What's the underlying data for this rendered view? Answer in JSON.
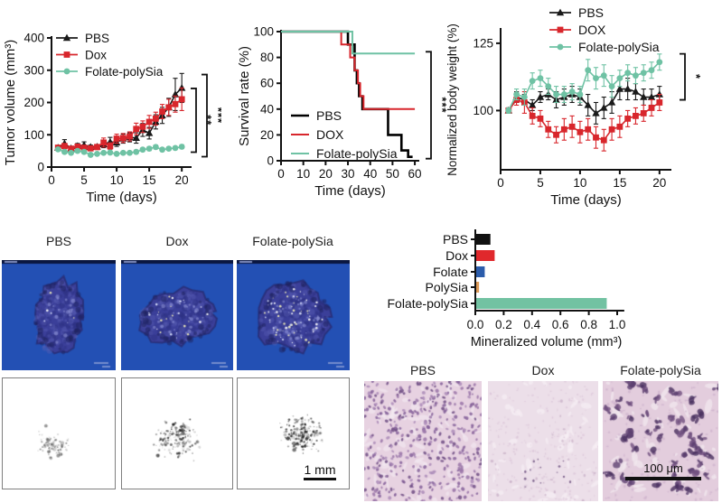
{
  "figure": {
    "background": "#ffffff"
  },
  "chart_data": [
    {
      "id": "tumor-volume",
      "type": "line",
      "xlabel": "Time (days)",
      "ylabel": "Tumor volume (mm³)",
      "xlim": [
        0,
        21.5
      ],
      "ylim": [
        0,
        400
      ],
      "xticks": [
        0,
        5,
        10,
        15,
        20
      ],
      "yticks": [
        0,
        100,
        200,
        300,
        400
      ],
      "x": [
        1,
        2,
        3,
        4,
        5,
        6,
        7,
        8,
        9,
        10,
        11,
        12,
        13,
        14,
        15,
        16,
        17,
        18,
        19,
        20
      ],
      "series": [
        {
          "name": "PBS",
          "color": "#1a1a1a",
          "marker": "triangle",
          "values": [
            60,
            73,
            58,
            65,
            68,
            62,
            63,
            70,
            78,
            76,
            88,
            92,
            90,
            115,
            105,
            140,
            160,
            185,
            225,
            245
          ],
          "errors": [
            5,
            12,
            6,
            8,
            10,
            6,
            6,
            10,
            14,
            12,
            14,
            14,
            16,
            20,
            18,
            22,
            25,
            28,
            50,
            45
          ]
        },
        {
          "name": "Dox",
          "color": "#d8262c",
          "marker": "square",
          "values": [
            60,
            65,
            57,
            63,
            60,
            58,
            62,
            76,
            65,
            88,
            90,
            95,
            118,
            125,
            140,
            150,
            172,
            185,
            195,
            210
          ],
          "errors": [
            5,
            8,
            6,
            8,
            7,
            6,
            8,
            14,
            10,
            14,
            14,
            14,
            18,
            18,
            20,
            20,
            22,
            25,
            25,
            35
          ]
        },
        {
          "name": "Folate-polySia",
          "color": "#6fc2a4",
          "marker": "circle",
          "values": [
            55,
            47,
            44,
            50,
            47,
            38,
            41,
            44,
            45,
            41,
            44,
            44,
            47,
            54,
            57,
            62,
            54,
            57,
            59,
            63
          ],
          "errors": [
            4,
            4,
            4,
            5,
            4,
            4,
            4,
            4,
            5,
            4,
            4,
            4,
            5,
            5,
            6,
            6,
            5,
            5,
            5,
            6
          ]
        }
      ],
      "significance": [
        {
          "label": "**",
          "a": 1,
          "b": 2
        },
        {
          "label": "***",
          "a": 0,
          "b": 2
        }
      ]
    },
    {
      "id": "survival",
      "type": "step",
      "xlabel": "Time (days)",
      "ylabel": "Survival rate (%)",
      "xlim": [
        0,
        62
      ],
      "ylim": [
        0,
        100
      ],
      "xticks": [
        0,
        10,
        20,
        30,
        40,
        50,
        60
      ],
      "yticks": [
        0,
        20,
        40,
        60,
        80,
        100
      ],
      "series": [
        {
          "name": "PBS",
          "color": "#000000",
          "width": 2.6,
          "steps": [
            [
              0,
              100
            ],
            [
              30,
              100
            ],
            [
              30,
              90
            ],
            [
              33,
              90
            ],
            [
              33,
              70
            ],
            [
              34,
              70
            ],
            [
              34,
              60
            ],
            [
              35,
              60
            ],
            [
              35,
              50
            ],
            [
              36.5,
              50
            ],
            [
              36.5,
              40
            ],
            [
              48,
              40
            ],
            [
              48,
              20
            ],
            [
              54,
              20
            ],
            [
              54,
              8
            ],
            [
              57,
              8
            ],
            [
              57,
              3
            ],
            [
              59,
              3
            ]
          ]
        },
        {
          "name": "DOX",
          "color": "#d8262c",
          "width": 2,
          "steps": [
            [
              0,
              100
            ],
            [
              27,
              100
            ],
            [
              27,
              90
            ],
            [
              31,
              90
            ],
            [
              31,
              80
            ],
            [
              33,
              80
            ],
            [
              33,
              70
            ],
            [
              34.5,
              70
            ],
            [
              34.5,
              60
            ],
            [
              35.5,
              60
            ],
            [
              35.5,
              50
            ],
            [
              37,
              50
            ],
            [
              37,
              40
            ],
            [
              60,
              40
            ]
          ]
        },
        {
          "name": "Folate-polySia",
          "color": "#6fc2a4",
          "width": 2,
          "steps": [
            [
              0,
              100
            ],
            [
              32,
              100
            ],
            [
              32,
              83
            ],
            [
              60,
              83
            ]
          ]
        }
      ],
      "significance": [
        {
          "label": "***",
          "a": 2,
          "b": 0
        }
      ]
    },
    {
      "id": "body-weight",
      "type": "line",
      "xlabel": "Time (days)",
      "ylabel": "Normalized body weight (%)",
      "xlim": [
        0,
        21.5
      ],
      "ylim": [
        78,
        130
      ],
      "xticks": [
        0,
        5,
        10,
        15,
        20
      ],
      "yticks": [
        100,
        125
      ],
      "x": [
        1,
        2,
        3,
        4,
        5,
        6,
        7,
        8,
        9,
        10,
        11,
        12,
        13,
        14,
        15,
        16,
        17,
        18,
        19,
        20
      ],
      "series": [
        {
          "name": "PBS",
          "color": "#1a1a1a",
          "marker": "triangle",
          "values": [
            100,
            105,
            104,
            102,
            105,
            106,
            104,
            105,
            106,
            105,
            102,
            99,
            101,
            103,
            108,
            108,
            107,
            105,
            105,
            106
          ],
          "errors": [
            1,
            2,
            2,
            2,
            2,
            2,
            3,
            3,
            3,
            3,
            4,
            4,
            4,
            4,
            4,
            4,
            3,
            3,
            3,
            3
          ]
        },
        {
          "name": "DOX",
          "color": "#d8262c",
          "marker": "square",
          "values": [
            100,
            104,
            103,
            98,
            97,
            93,
            91,
            93,
            94,
            92,
            93,
            90,
            89,
            93,
            94,
            97,
            98,
            99,
            101,
            103
          ],
          "errors": [
            1,
            2,
            4,
            3,
            3,
            3,
            3,
            4,
            4,
            4,
            4,
            4,
            4,
            4,
            4,
            3,
            3,
            3,
            3,
            3
          ]
        },
        {
          "name": "Folate-polySia",
          "color": "#6fc2a4",
          "marker": "circle",
          "values": [
            100,
            106,
            105,
            111,
            112,
            109,
            106,
            106,
            107,
            106,
            115,
            112,
            113,
            109,
            112,
            114,
            113,
            114,
            115,
            118
          ],
          "errors": [
            1,
            2,
            3,
            3,
            3,
            3,
            3,
            3,
            3,
            3,
            4,
            4,
            4,
            4,
            3,
            3,
            3,
            3,
            3,
            3
          ]
        }
      ],
      "significance": [
        {
          "label": "*",
          "a": 2,
          "b": 0
        }
      ]
    },
    {
      "id": "mineralized-volume",
      "type": "bar-horizontal",
      "xlabel": "Mineralized volume (mm³)",
      "categories": [
        "PBS",
        "Dox",
        "Folate",
        "PolySia",
        "Folate-polySia"
      ],
      "values": [
        0.1,
        0.13,
        0.06,
        0.02,
        0.92
      ],
      "colors": [
        "#111111",
        "#e0282c",
        "#2b5cab",
        "#dd9a57",
        "#72c2a2"
      ],
      "xticks": [
        0,
        0.2,
        0.4,
        0.6,
        0.8,
        1.0
      ],
      "xlim": [
        0,
        1.05
      ]
    }
  ],
  "panels": {
    "microct": {
      "labels": [
        "PBS",
        "Dox",
        "Folate-polySia"
      ]
    },
    "binary_maps": {
      "scale_bar": "1 mm"
    },
    "histology": {
      "labels": [
        "PBS",
        "Dox",
        "Folate-polySia"
      ],
      "scale_bar": "100 μm"
    }
  }
}
